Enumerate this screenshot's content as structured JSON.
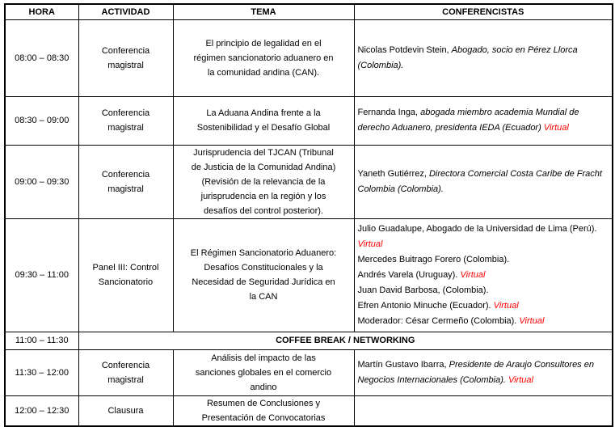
{
  "colors": {
    "text": "#000000",
    "virtual_red": "#ff0000",
    "border": "#000000",
    "background": "#ffffff"
  },
  "table": {
    "headers": [
      "HORA",
      "ACTIVIDAD",
      "TEMA",
      "CONFERENCISTAS"
    ],
    "rows": [
      {
        "kind": "session",
        "height": 95,
        "hora": "08:00 – 08:30",
        "actividad": "Conferencia\nmagistral",
        "tema": "El principio de legalidad en el\nrégimen sancionatorio aduanero en\nla comunidad andina (CAN).",
        "conferencistas": [
          [
            {
              "t": "Nicolas Potdevin Stein,  "
            },
            {
              "t": "Abogado, socio en Pérez Llorca\n(Colombia).",
              "i": true
            }
          ]
        ]
      },
      {
        "kind": "session",
        "height": 60,
        "hora": "08:30 – 09:00",
        "actividad": "Conferencia\nmagistral",
        "tema": "La Aduana Andina frente a la\nSostenibilidad y el Desafío Global",
        "conferencistas": [
          [
            {
              "t": "Fernanda Inga, "
            },
            {
              "t": "abogada miembro academia Mundial de\nderecho Aduanero, presidenta IEDA (Ecuador) ",
              "i": true
            },
            {
              "t": "Virtual",
              "i": true,
              "red": true
            }
          ]
        ]
      },
      {
        "kind": "session",
        "height": 91,
        "hora": "09:00 – 09:30",
        "actividad": "Conferencia\nmagistral",
        "tema": "Jurisprudencia del TJCAN (Tribunal\nde Justicia de la Comunidad Andina)\n(Revisión de la relevancia de la\njurisprudencia en la región y los\ndesafíos del control posterior).",
        "conferencistas": [
          [
            {
              "t": "Yaneth Gutiérrez, "
            },
            {
              "t": "Directora Comercial Costa Caribe de Fracht\nColombia (Colombia).",
              "i": true
            }
          ]
        ]
      },
      {
        "kind": "session",
        "height": 140,
        "hora": "09:30 – 11:00",
        "actividad": "Panel III: Control\nSancionatorio",
        "tema": "El Régimen Sancionatorio Aduanero:\nDesafíos Constitucionales y la\nNecesidad de Seguridad Jurídica en\nla CAN",
        "conferencistas": [
          [
            {
              "t": "Julio Guadalupe, Abogado de la Universidad de Lima (Perú).\n"
            },
            {
              "t": "Virtual",
              "i": true,
              "red": true
            }
          ],
          [
            {
              "t": "Mercedes Buitrago Forero (Colombia)."
            }
          ],
          [
            {
              "t": "Andrés Varela (Uruguay). "
            },
            {
              "t": "Virtual",
              "i": true,
              "red": true
            }
          ],
          [
            {
              "t": "Juan David Barbosa, (Colombia)."
            }
          ],
          [
            {
              "t": "Efren Antonio Minuche (Ecuador). "
            },
            {
              "t": "Virtual",
              "i": true,
              "red": true
            }
          ],
          [
            {
              "t": "Moderador: César Cermeño (Colombia). "
            },
            {
              "t": "Virtual",
              "i": true,
              "red": true
            }
          ]
        ]
      },
      {
        "kind": "break",
        "height": 22,
        "hora": "11:00 – 11:30",
        "label": "COFFEE BREAK / NETWORKING"
      },
      {
        "kind": "session",
        "height": 57,
        "hora": "11:30 – 12:00",
        "actividad": "Conferencia\nmagistral",
        "tema": "Análisis del impacto de las\nsanciones globales en el comercio\nandino",
        "conferencistas": [
          [
            {
              "t": "Martín Gustavo Ibarra, "
            },
            {
              "t": "Presidente de Araujo Consultores en\nNegocios Internacionales (Colombia). ",
              "i": true
            },
            {
              "t": "Virtual",
              "i": true,
              "red": true
            }
          ]
        ]
      },
      {
        "kind": "session",
        "height": 36,
        "hora": "12:00 – 12:30",
        "actividad": "Clausura",
        "tema": "Resumen de Conclusiones y\nPresentación de Convocatorias",
        "conferencistas": []
      }
    ]
  }
}
